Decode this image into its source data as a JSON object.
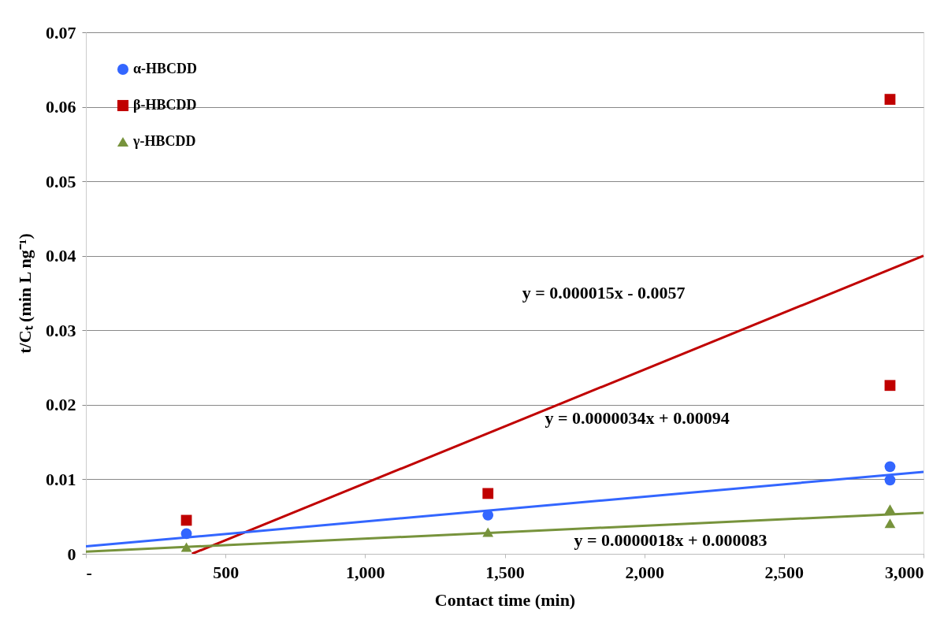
{
  "chart_data": {
    "type": "scatter",
    "xlabel": "Contact time (min)",
    "ylabel": "t/Cₜ (min L ng⁻¹)",
    "xlim": [
      0,
      3000
    ],
    "xticks": [
      {
        "value": 0,
        "label": "-"
      },
      {
        "value": 500,
        "label": "500"
      },
      {
        "value": 1000,
        "label": "1,000"
      },
      {
        "value": 1500,
        "label": "1,500"
      },
      {
        "value": 2000,
        "label": "2,000"
      },
      {
        "value": 2500,
        "label": "2,500"
      },
      {
        "value": 3000,
        "label": "3,000"
      }
    ],
    "ylim": [
      0,
      0.07
    ],
    "yticks": [
      0,
      0.01,
      0.02,
      0.03,
      0.04,
      0.05,
      0.06,
      0.07
    ],
    "grid": "y",
    "legend": "top left",
    "series": [
      {
        "name": "α-HBCDD",
        "marker": "circle",
        "color": "#3366ff",
        "x": [
          360,
          1440,
          2880,
          2880
        ],
        "values": [
          0.0027,
          0.0052,
          0.0117,
          0.0099
        ]
      },
      {
        "name": "β-HBCDD",
        "marker": "square",
        "color": "#c00000",
        "x": [
          360,
          1440,
          2880,
          2880
        ],
        "values": [
          0.0045,
          0.0081,
          0.061,
          0.0226
        ]
      },
      {
        "name": "γ-HBCDD",
        "marker": "triangle",
        "color": "#77933c",
        "x": [
          360,
          1440,
          2880,
          2880
        ],
        "values": [
          0.0009,
          0.0029,
          0.006,
          0.0041
        ]
      },
      {
        "type": "line",
        "color": "#c00000",
        "x": [
          380,
          3000
        ],
        "values": [
          0,
          0.04
        ]
      },
      {
        "type": "line",
        "color": "#3366ff",
        "x": [
          0,
          3000
        ],
        "values": [
          0.001,
          0.011
        ]
      },
      {
        "type": "line",
        "color": "#77933c",
        "x": [
          0,
          3000
        ],
        "values": [
          0.0003,
          0.0055
        ]
      }
    ],
    "annotations": [
      "y = 0.000015x - 0.0057",
      "y = 0.0000034x + 0.00094",
      "y = 0.0000018x + 0.000083"
    ]
  }
}
